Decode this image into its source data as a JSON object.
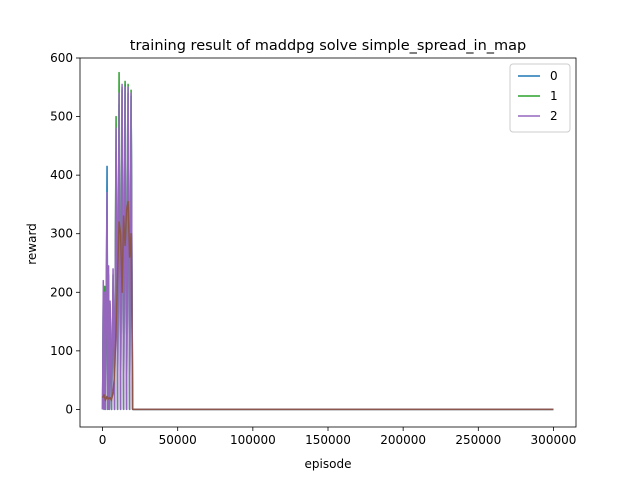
{
  "chart_data": {
    "type": "line",
    "title": "training result of maddpg solve simple_spread_in_map",
    "xlabel": "episode",
    "ylabel": "reward",
    "xlim": [
      -15000,
      315000
    ],
    "ylim": [
      -30,
      600
    ],
    "xticks": [
      0,
      50000,
      100000,
      150000,
      200000,
      250000,
      300000
    ],
    "yticks": [
      0,
      100,
      200,
      300,
      400,
      500,
      600
    ],
    "grid": false,
    "legend_position": "top-right",
    "series": [
      {
        "name": "0",
        "color": "#1f77b4",
        "x": [
          0,
          500,
          1000,
          1500,
          2000,
          2500,
          3000,
          3500,
          4000,
          4500,
          5000,
          6000,
          7000,
          8000,
          9000,
          10000,
          11000,
          12000,
          13000,
          14000,
          15000,
          16000,
          17000,
          18000,
          19000,
          20000,
          21000,
          100000,
          200000,
          300000
        ],
        "y": [
          0,
          190,
          0,
          205,
          0,
          180,
          415,
          0,
          230,
          0,
          160,
          0,
          200,
          0,
          440,
          0,
          520,
          0,
          545,
          0,
          555,
          0,
          540,
          0,
          535,
          0,
          0,
          0,
          0,
          0
        ]
      },
      {
        "name": "1",
        "color": "#2ca02c",
        "x": [
          0,
          500,
          1000,
          1500,
          2000,
          2500,
          3000,
          3500,
          4000,
          4500,
          5000,
          6000,
          7000,
          8000,
          9000,
          10000,
          11000,
          12000,
          13000,
          14000,
          15000,
          16000,
          17000,
          18000,
          19000,
          20000,
          21000,
          100000,
          200000,
          300000
        ],
        "y": [
          0,
          200,
          0,
          210,
          0,
          190,
          300,
          0,
          210,
          0,
          180,
          0,
          230,
          0,
          500,
          0,
          575,
          0,
          550,
          0,
          560,
          0,
          555,
          0,
          545,
          0,
          0,
          0,
          0,
          0
        ]
      },
      {
        "name": "2",
        "color": "#9467bd",
        "x": [
          0,
          500,
          1000,
          1500,
          2000,
          2500,
          3000,
          3500,
          4000,
          4500,
          5000,
          6000,
          7000,
          8000,
          9000,
          10000,
          11000,
          12000,
          13000,
          14000,
          15000,
          16000,
          17000,
          18000,
          19000,
          20000,
          21000,
          100000,
          200000,
          300000
        ],
        "y": [
          0,
          220,
          0,
          200,
          0,
          215,
          370,
          0,
          245,
          0,
          185,
          0,
          240,
          0,
          480,
          0,
          540,
          0,
          555,
          0,
          550,
          0,
          550,
          0,
          540,
          0,
          0,
          0,
          0,
          0
        ]
      },
      {
        "color": "#8c564b",
        "x": [
          0,
          1000,
          2000,
          3000,
          4000,
          5000,
          6000,
          7000,
          8000,
          9000,
          10000,
          11000,
          12000,
          13000,
          14000,
          15000,
          16000,
          17000,
          18000,
          19000,
          20000,
          100000,
          200000,
          300000
        ],
        "y": [
          20,
          25,
          15,
          22,
          18,
          20,
          15,
          30,
          60,
          140,
          230,
          320,
          300,
          200,
          330,
          280,
          340,
          355,
          260,
          300,
          0,
          0,
          0,
          0
        ]
      }
    ]
  }
}
